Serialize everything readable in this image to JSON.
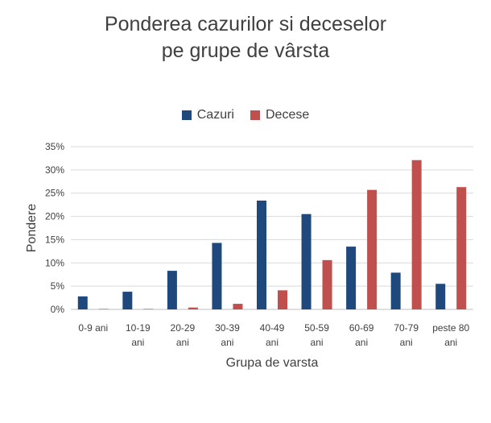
{
  "chart_data": {
    "type": "bar",
    "title_lines": [
      "Ponderea cazurilor si deceselor",
      "pe grupe de vârsta"
    ],
    "xlabel": "Grupa de varsta",
    "ylabel": "Pondere",
    "ylim": [
      0,
      35
    ],
    "yticks": [
      "0%",
      "5%",
      "10%",
      "15%",
      "20%",
      "25%",
      "30%",
      "35%"
    ],
    "ytick_values": [
      0,
      5,
      10,
      15,
      20,
      25,
      30,
      35
    ],
    "categories": [
      [
        "0-9 ani"
      ],
      [
        "10-19",
        "ani"
      ],
      [
        "20-29",
        "ani"
      ],
      [
        "30-39",
        "ani"
      ],
      [
        "40-49",
        "ani"
      ],
      [
        "50-59",
        "ani"
      ],
      [
        "60-69",
        "ani"
      ],
      [
        "70-79",
        "ani"
      ],
      [
        "peste 80",
        "ani"
      ]
    ],
    "series": [
      {
        "name": "Cazuri",
        "color": "#1F497D",
        "values": [
          2.8,
          3.8,
          8.3,
          14.3,
          23.4,
          20.5,
          13.5,
          7.9,
          5.5
        ]
      },
      {
        "name": "Decese",
        "color": "#C0504D",
        "values": [
          0.1,
          0.1,
          0.4,
          1.2,
          4.1,
          10.6,
          25.7,
          32.1,
          26.3
        ]
      }
    ],
    "grid": true,
    "legend_position": "top-center"
  }
}
